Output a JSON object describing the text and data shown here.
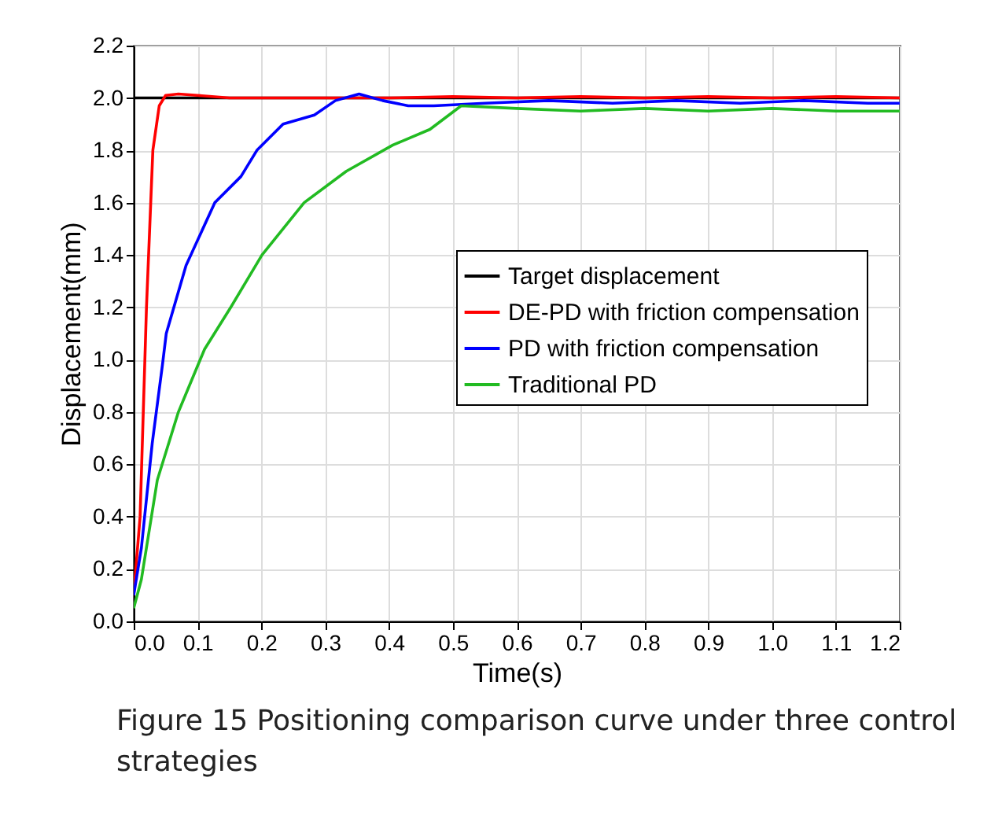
{
  "chart_data": {
    "type": "line",
    "xlabel": "Time(s)",
    "ylabel": "Displacement(mm)",
    "xlim": [
      0,
      1.2
    ],
    "ylim": [
      0,
      2.2
    ],
    "xticks": [
      {
        "value": 0,
        "label": "0.0"
      },
      0.1,
      0.2,
      0.3,
      0.4,
      0.5,
      0.6,
      0.7,
      0.8,
      0.9,
      {
        "value": 1,
        "label": "1.0"
      },
      1.1,
      1.2
    ],
    "yticks": [
      {
        "value": 0,
        "label": "0.0"
      },
      0.2,
      0.4,
      0.6,
      0.8,
      {
        "value": 1,
        "label": "1.0"
      },
      1.2,
      1.4,
      1.6,
      1.8,
      {
        "value": 2,
        "label": "2.0"
      },
      2.2
    ],
    "grid": true,
    "legend": "right",
    "line_style": "solid",
    "marker": "none",
    "series": [
      {
        "name": "Target displacement",
        "color": "#000000",
        "x": [
          0,
          1.2
        ],
        "values": [
          2,
          2
        ]
      },
      {
        "name": "DE-PD with friction compensation",
        "color": "#ff0000",
        "x": [
          0,
          0.01,
          0.02,
          0.03,
          0.04,
          0.05,
          0.07,
          0.1,
          0.15,
          0.2,
          0.3,
          0.4,
          0.5,
          0.6,
          0.7,
          0.8,
          0.9,
          1.0,
          1.1,
          1.2
        ],
        "values": [
          0.1,
          0.4,
          1.2,
          1.8,
          1.97,
          2.01,
          2.015,
          2.01,
          2.0,
          2.0,
          2.0,
          2.0,
          2.005,
          2.0,
          2.005,
          2.0,
          2.005,
          2.0,
          2.005,
          2.0
        ]
      },
      {
        "name": "PD with friction compensation",
        "color": "#0000ff",
        "x": [
          0,
          0.012,
          0.029,
          0.045,
          0.051,
          0.082,
          0.127,
          0.168,
          0.193,
          0.234,
          0.283,
          0.316,
          0.353,
          0.39,
          0.43,
          0.47,
          0.55,
          0.65,
          0.75,
          0.85,
          0.95,
          1.05,
          1.15,
          1.2
        ],
        "values": [
          0.1,
          0.28,
          0.68,
          0.98,
          1.1,
          1.36,
          1.6,
          1.7,
          1.8,
          1.9,
          1.935,
          1.99,
          2.015,
          1.99,
          1.97,
          1.97,
          1.98,
          1.99,
          1.98,
          1.99,
          1.98,
          1.99,
          1.98,
          1.98
        ]
      },
      {
        "name": "Traditional PD",
        "color": "#22bb22",
        "x": [
          0,
          0.012,
          0.037,
          0.07,
          0.111,
          0.152,
          0.201,
          0.267,
          0.333,
          0.406,
          0.464,
          0.513,
          0.6,
          0.7,
          0.8,
          0.9,
          1.0,
          1.1,
          1.2
        ],
        "values": [
          0.05,
          0.16,
          0.54,
          0.8,
          1.04,
          1.2,
          1.4,
          1.6,
          1.72,
          1.82,
          1.88,
          1.97,
          1.96,
          1.95,
          1.96,
          1.95,
          1.96,
          1.95,
          1.95
        ]
      }
    ],
    "annotations": [
      "Figure 15  Positioning comparison curve under three control strategies"
    ]
  }
}
